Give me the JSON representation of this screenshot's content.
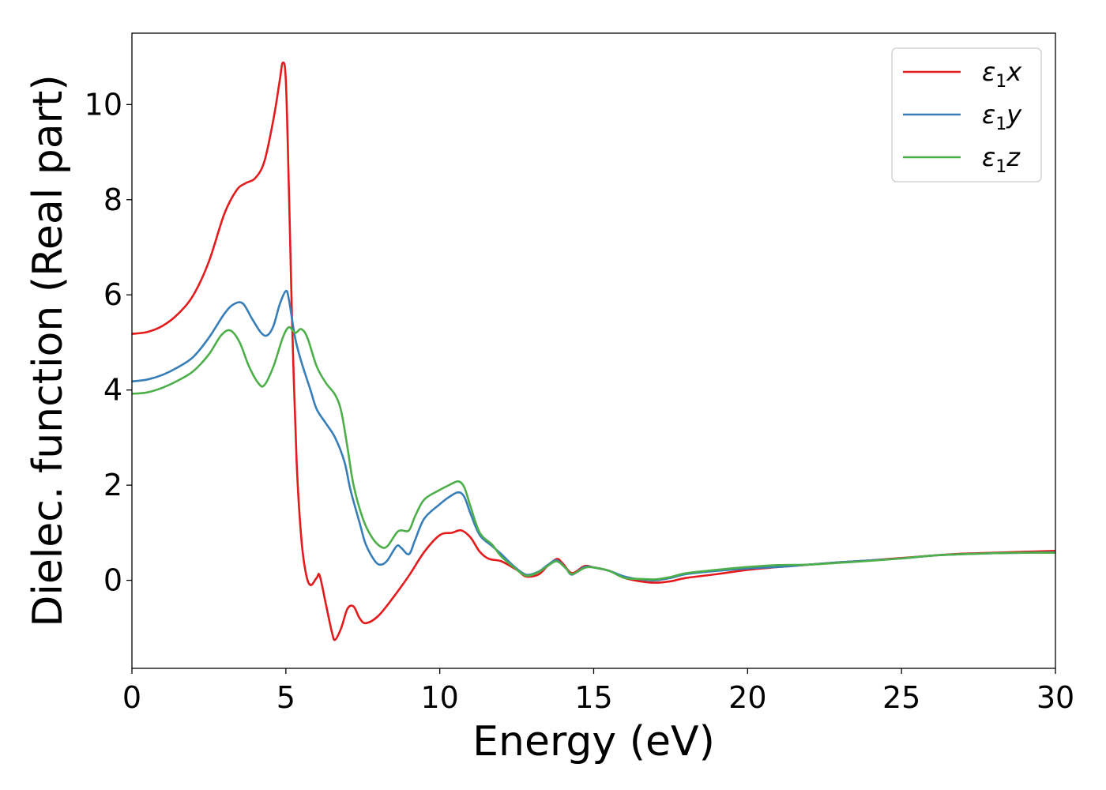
{
  "chart_data": {
    "type": "line",
    "xlabel": "Energy (eV)",
    "ylabel": "Dielec. function (Real part)",
    "xlim": [
      0,
      30
    ],
    "ylim": [
      -1.85,
      11.5
    ],
    "xticks": [
      0,
      5,
      10,
      15,
      20,
      25,
      30
    ],
    "yticks": [
      0,
      2,
      4,
      6,
      8,
      10
    ],
    "grid": false,
    "legend_position": "top-right",
    "series": [
      {
        "name": "ε₁x",
        "label_main": "ε",
        "label_sub": "1",
        "label_var": "x",
        "color": "#e41a1c",
        "points": [
          [
            0,
            5.18
          ],
          [
            0.5,
            5.22
          ],
          [
            1.0,
            5.35
          ],
          [
            1.5,
            5.6
          ],
          [
            2.0,
            6.0
          ],
          [
            2.5,
            6.7
          ],
          [
            3.0,
            7.7
          ],
          [
            3.4,
            8.2
          ],
          [
            3.7,
            8.35
          ],
          [
            4.0,
            8.45
          ],
          [
            4.3,
            8.8
          ],
          [
            4.6,
            9.7
          ],
          [
            4.8,
            10.5
          ],
          [
            4.9,
            10.88
          ],
          [
            5.0,
            10.5
          ],
          [
            5.1,
            8.2
          ],
          [
            5.2,
            5.5
          ],
          [
            5.35,
            2.5
          ],
          [
            5.5,
            0.9
          ],
          [
            5.65,
            0.15
          ],
          [
            5.8,
            -0.1
          ],
          [
            6.0,
            0.05
          ],
          [
            6.1,
            0.1
          ],
          [
            6.3,
            -0.5
          ],
          [
            6.5,
            -1.1
          ],
          [
            6.6,
            -1.25
          ],
          [
            6.8,
            -1.0
          ],
          [
            7.0,
            -0.6
          ],
          [
            7.2,
            -0.55
          ],
          [
            7.4,
            -0.8
          ],
          [
            7.6,
            -0.9
          ],
          [
            8.0,
            -0.75
          ],
          [
            8.5,
            -0.35
          ],
          [
            9.0,
            0.1
          ],
          [
            9.5,
            0.6
          ],
          [
            10.0,
            0.95
          ],
          [
            10.4,
            1.0
          ],
          [
            10.7,
            1.05
          ],
          [
            11.0,
            0.9
          ],
          [
            11.3,
            0.6
          ],
          [
            11.6,
            0.45
          ],
          [
            12.0,
            0.4
          ],
          [
            12.5,
            0.22
          ],
          [
            12.8,
            0.08
          ],
          [
            13.2,
            0.12
          ],
          [
            13.5,
            0.3
          ],
          [
            13.8,
            0.45
          ],
          [
            14.0,
            0.35
          ],
          [
            14.3,
            0.15
          ],
          [
            14.7,
            0.3
          ],
          [
            15.0,
            0.27
          ],
          [
            15.5,
            0.2
          ],
          [
            16.0,
            0.05
          ],
          [
            16.5,
            -0.02
          ],
          [
            17.0,
            -0.05
          ],
          [
            17.5,
            -0.02
          ],
          [
            18.0,
            0.05
          ],
          [
            19.0,
            0.13
          ],
          [
            20.0,
            0.22
          ],
          [
            21.0,
            0.28
          ],
          [
            22.0,
            0.33
          ],
          [
            23.0,
            0.38
          ],
          [
            24.0,
            0.42
          ],
          [
            25.0,
            0.47
          ],
          [
            26.0,
            0.52
          ],
          [
            27.0,
            0.56
          ],
          [
            28.0,
            0.58
          ],
          [
            29.0,
            0.6
          ],
          [
            30.0,
            0.62
          ]
        ]
      },
      {
        "name": "ε₁y",
        "label_main": "ε",
        "label_sub": "1",
        "label_var": "y",
        "color": "#377eb8",
        "points": [
          [
            0,
            4.18
          ],
          [
            0.5,
            4.22
          ],
          [
            1.0,
            4.32
          ],
          [
            1.5,
            4.48
          ],
          [
            2.0,
            4.7
          ],
          [
            2.5,
            5.1
          ],
          [
            3.0,
            5.6
          ],
          [
            3.3,
            5.8
          ],
          [
            3.6,
            5.82
          ],
          [
            3.9,
            5.5
          ],
          [
            4.2,
            5.2
          ],
          [
            4.4,
            5.15
          ],
          [
            4.6,
            5.35
          ],
          [
            4.8,
            5.8
          ],
          [
            5.0,
            6.08
          ],
          [
            5.1,
            5.9
          ],
          [
            5.3,
            5.1
          ],
          [
            5.5,
            4.6
          ],
          [
            5.8,
            4.0
          ],
          [
            6.0,
            3.6
          ],
          [
            6.3,
            3.3
          ],
          [
            6.6,
            3.0
          ],
          [
            6.9,
            2.5
          ],
          [
            7.1,
            1.9
          ],
          [
            7.4,
            1.2
          ],
          [
            7.6,
            0.75
          ],
          [
            7.9,
            0.4
          ],
          [
            8.1,
            0.33
          ],
          [
            8.3,
            0.42
          ],
          [
            8.6,
            0.72
          ],
          [
            8.75,
            0.68
          ],
          [
            9.0,
            0.55
          ],
          [
            9.2,
            0.85
          ],
          [
            9.5,
            1.3
          ],
          [
            10.0,
            1.6
          ],
          [
            10.3,
            1.75
          ],
          [
            10.6,
            1.85
          ],
          [
            10.8,
            1.75
          ],
          [
            11.0,
            1.4
          ],
          [
            11.3,
            0.95
          ],
          [
            11.7,
            0.72
          ],
          [
            12.0,
            0.55
          ],
          [
            12.4,
            0.3
          ],
          [
            12.8,
            0.12
          ],
          [
            13.2,
            0.18
          ],
          [
            13.5,
            0.32
          ],
          [
            13.8,
            0.42
          ],
          [
            14.1,
            0.25
          ],
          [
            14.3,
            0.12
          ],
          [
            14.7,
            0.28
          ],
          [
            15.0,
            0.27
          ],
          [
            15.5,
            0.2
          ],
          [
            16.0,
            0.08
          ],
          [
            16.5,
            0.02
          ],
          [
            17.0,
            0.0
          ],
          [
            17.5,
            0.05
          ],
          [
            18.0,
            0.13
          ],
          [
            19.0,
            0.2
          ],
          [
            20.0,
            0.25
          ],
          [
            21.0,
            0.28
          ],
          [
            22.0,
            0.33
          ],
          [
            23.0,
            0.38
          ],
          [
            24.0,
            0.42
          ],
          [
            25.0,
            0.46
          ],
          [
            26.0,
            0.52
          ],
          [
            27.0,
            0.55
          ],
          [
            28.0,
            0.57
          ],
          [
            29.0,
            0.58
          ],
          [
            30.0,
            0.59
          ]
        ]
      },
      {
        "name": "ε₁z",
        "label_main": "ε",
        "label_sub": "1",
        "label_var": "z",
        "color": "#4daf4a",
        "points": [
          [
            0,
            3.92
          ],
          [
            0.5,
            3.95
          ],
          [
            1.0,
            4.05
          ],
          [
            1.5,
            4.2
          ],
          [
            2.0,
            4.4
          ],
          [
            2.5,
            4.75
          ],
          [
            2.9,
            5.15
          ],
          [
            3.2,
            5.25
          ],
          [
            3.5,
            5.0
          ],
          [
            3.8,
            4.5
          ],
          [
            4.1,
            4.15
          ],
          [
            4.3,
            4.1
          ],
          [
            4.6,
            4.5
          ],
          [
            4.9,
            5.1
          ],
          [
            5.1,
            5.32
          ],
          [
            5.3,
            5.2
          ],
          [
            5.5,
            5.28
          ],
          [
            5.7,
            5.1
          ],
          [
            6.0,
            4.5
          ],
          [
            6.3,
            4.15
          ],
          [
            6.6,
            3.9
          ],
          [
            6.8,
            3.55
          ],
          [
            7.0,
            2.8
          ],
          [
            7.2,
            2.0
          ],
          [
            7.5,
            1.3
          ],
          [
            7.8,
            0.9
          ],
          [
            8.1,
            0.7
          ],
          [
            8.3,
            0.72
          ],
          [
            8.6,
            1.0
          ],
          [
            8.75,
            1.05
          ],
          [
            9.0,
            1.05
          ],
          [
            9.2,
            1.35
          ],
          [
            9.5,
            1.7
          ],
          [
            10.0,
            1.9
          ],
          [
            10.3,
            2.0
          ],
          [
            10.6,
            2.08
          ],
          [
            10.8,
            1.95
          ],
          [
            11.0,
            1.55
          ],
          [
            11.3,
            1.0
          ],
          [
            11.7,
            0.75
          ],
          [
            12.0,
            0.5
          ],
          [
            12.4,
            0.28
          ],
          [
            12.8,
            0.1
          ],
          [
            13.2,
            0.17
          ],
          [
            13.5,
            0.3
          ],
          [
            13.8,
            0.4
          ],
          [
            14.1,
            0.25
          ],
          [
            14.3,
            0.13
          ],
          [
            14.7,
            0.26
          ],
          [
            15.0,
            0.27
          ],
          [
            15.5,
            0.2
          ],
          [
            16.0,
            0.05
          ],
          [
            16.5,
            0.03
          ],
          [
            17.0,
            0.02
          ],
          [
            17.5,
            0.07
          ],
          [
            18.0,
            0.15
          ],
          [
            19.0,
            0.22
          ],
          [
            20.0,
            0.28
          ],
          [
            21.0,
            0.32
          ],
          [
            22.0,
            0.33
          ],
          [
            23.0,
            0.37
          ],
          [
            24.0,
            0.41
          ],
          [
            25.0,
            0.46
          ],
          [
            26.0,
            0.52
          ],
          [
            27.0,
            0.55
          ],
          [
            28.0,
            0.57
          ],
          [
            29.0,
            0.58
          ],
          [
            30.0,
            0.58
          ]
        ]
      }
    ]
  }
}
